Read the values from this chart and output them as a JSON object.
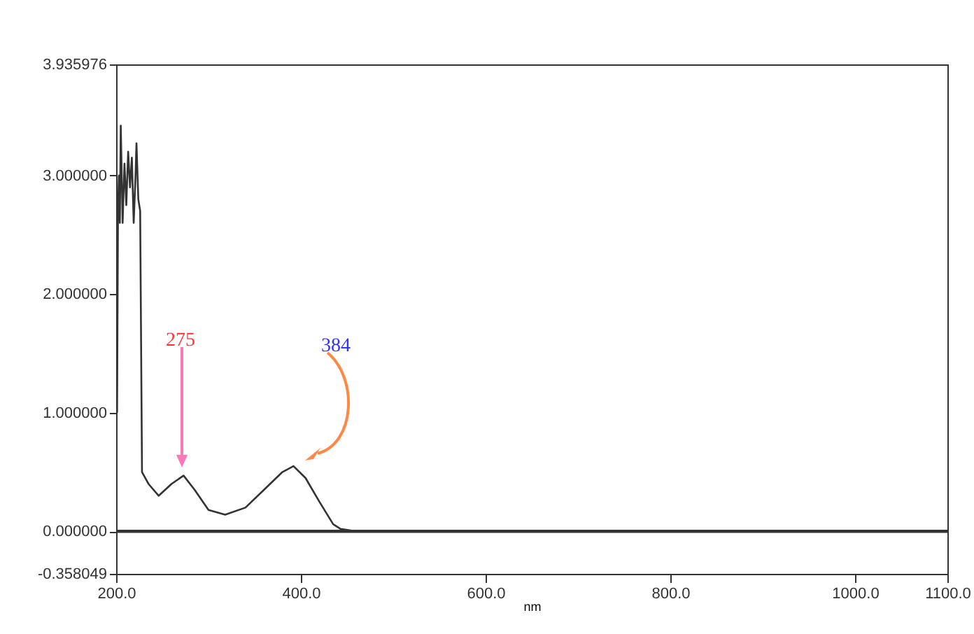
{
  "chart_data": {
    "type": "line",
    "xlabel": "nm",
    "x": [
      201,
      202,
      203,
      204,
      205,
      207,
      209,
      211,
      213,
      215,
      217,
      219,
      221,
      222,
      224,
      226,
      228,
      235,
      246,
      260,
      273,
      285,
      300,
      318,
      340,
      360,
      380,
      392,
      405,
      420,
      435,
      443,
      460,
      1090
    ],
    "series": [
      {
        "color": "#333333",
        "values": [
          1.0,
          2.7,
          3.0,
          2.6,
          3.42,
          2.6,
          3.1,
          2.75,
          3.2,
          2.9,
          3.15,
          2.6,
          3.0,
          3.27,
          2.8,
          2.7,
          0.5,
          0.4,
          0.3,
          0.4,
          0.47,
          0.35,
          0.18,
          0.14,
          0.2,
          0.35,
          0.5,
          0.55,
          0.45,
          0.25,
          0.06,
          0.02,
          0,
          0
        ]
      }
    ],
    "xlim": [
      200,
      1100
    ],
    "xticks": [
      {
        "value": 200,
        "label": "200.0"
      },
      {
        "value": 400,
        "label": "400.0"
      },
      {
        "value": 600,
        "label": "600.0"
      },
      {
        "value": 800,
        "label": "800.0"
      },
      {
        "value": 1000,
        "label": "1000.0"
      },
      {
        "value": 1100,
        "label": "1100.0"
      }
    ],
    "ylim": [
      -0.358049,
      3.935976
    ],
    "yticks": [
      {
        "value": -0.358049,
        "label": "-0.358049"
      },
      {
        "value": 0,
        "label": "0.000000"
      },
      {
        "value": 1,
        "label": "1.000000"
      },
      {
        "value": 2,
        "label": "2.000000"
      },
      {
        "value": 3,
        "label": "3.000000"
      },
      {
        "value": 3.935976,
        "label": "3.935976"
      }
    ],
    "ref_lines": [
      {
        "axis": "y",
        "value": 0,
        "color": "#333333"
      }
    ],
    "annotations": [
      "275",
      "384"
    ],
    "grid": false,
    "marker": "none",
    "line_style": "solid"
  }
}
